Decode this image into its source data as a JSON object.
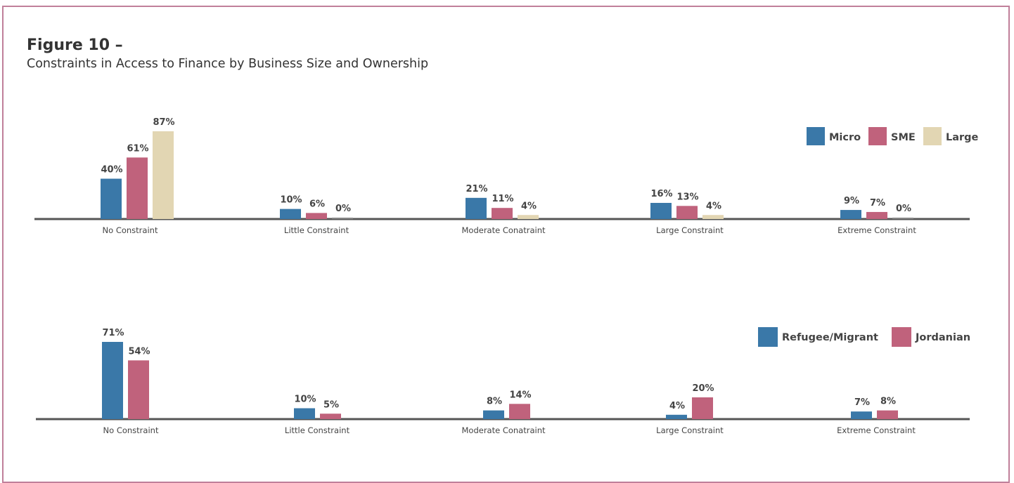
{
  "figure": {
    "title": "Figure 10 –",
    "subtitle": "Constraints in Access to Finance by Business Size and Ownership"
  },
  "chart_data": [
    {
      "type": "bar",
      "categories": [
        "No Constraint",
        "Little Constraint",
        "Moderate Conatraint",
        "Large Constraint",
        "Extreme Constraint"
      ],
      "series": [
        {
          "name": "Micro",
          "values": [
            40,
            10,
            21,
            16,
            9
          ],
          "labels": [
            "40%",
            "10%",
            "21%",
            "16%",
            "9%"
          ],
          "color": "#3a78a8"
        },
        {
          "name": "SME",
          "values": [
            61,
            6,
            11,
            13,
            7
          ],
          "labels": [
            "61%",
            "6%",
            "11%",
            "13%",
            "7%"
          ],
          "color": "#c0627c"
        },
        {
          "name": "Large",
          "values": [
            87,
            0,
            4,
            4,
            0
          ],
          "labels": [
            "87%",
            "0%",
            "4%",
            "4%",
            "0%"
          ],
          "color": "#e2d6b3"
        }
      ],
      "ylim": [
        0,
        100
      ],
      "unit": "%",
      "legend_position": "top-right",
      "grid": false
    },
    {
      "type": "bar",
      "categories": [
        "No Constraint",
        "Little Constraint",
        "Moderate Conatraint",
        "Large Constraint",
        "Extreme Constraint"
      ],
      "series": [
        {
          "name": "Refugee/Migrant",
          "values": [
            71,
            10,
            8,
            4,
            7
          ],
          "labels": [
            "71%",
            "10%",
            "8%",
            "4%",
            "7%"
          ],
          "color": "#3a78a8"
        },
        {
          "name": "Jordanian",
          "values": [
            54,
            5,
            14,
            20,
            8
          ],
          "labels": [
            "54%",
            "5%",
            "14%",
            "20%",
            "8%"
          ],
          "color": "#c0627c"
        }
      ],
      "ylim": [
        0,
        100
      ],
      "unit": "%",
      "legend_position": "top-right",
      "grid": false
    }
  ],
  "colors": {
    "frame_border": "#c0809a",
    "axis": "#555555",
    "text": "#444444"
  }
}
